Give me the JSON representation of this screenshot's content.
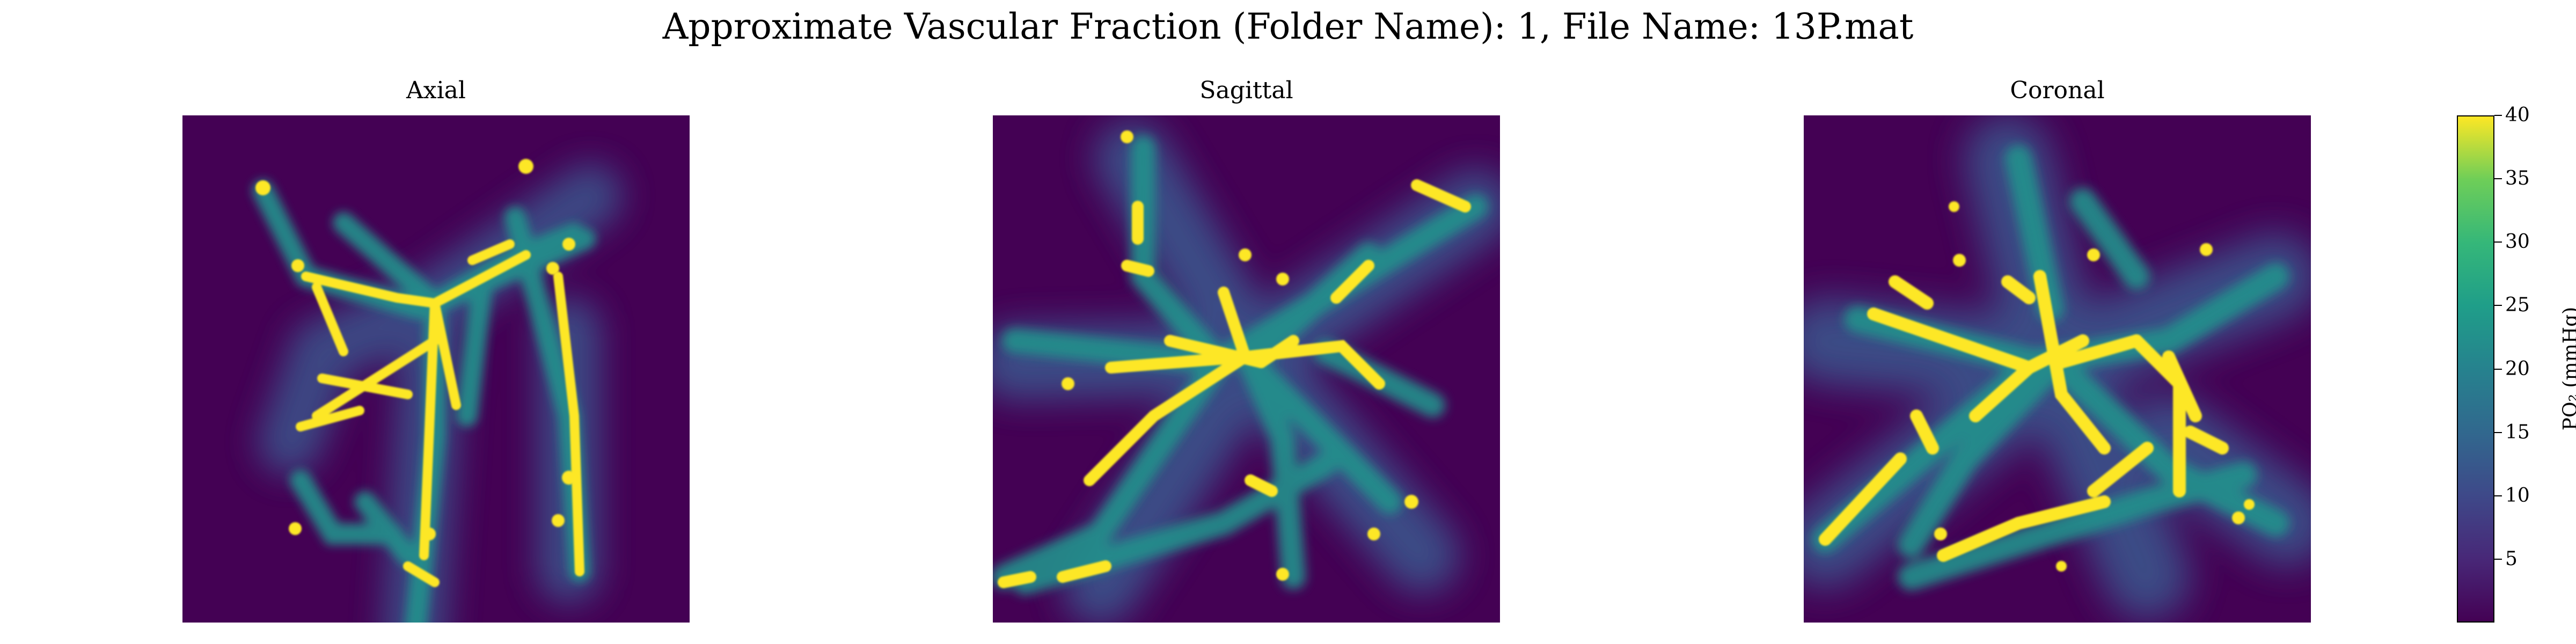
{
  "figure": {
    "title": "Approximate Vascular Fraction (Folder Name): 1, File Name: 13P.mat"
  },
  "chart_data": [
    {
      "type": "heatmap",
      "title": "Axial",
      "description_scale": "viridis",
      "xlabel": "",
      "ylabel": ""
    },
    {
      "type": "heatmap",
      "title": "Sagittal",
      "description_scale": "viridis",
      "xlabel": "",
      "ylabel": ""
    },
    {
      "type": "heatmap",
      "title": "Coronal",
      "description_scale": "viridis",
      "xlabel": "",
      "ylabel": ""
    }
  ],
  "colorbar": {
    "label": "PO₂ (mmHg)",
    "range": [
      0,
      40
    ],
    "ticks": [
      5,
      10,
      15,
      20,
      25,
      30,
      35,
      40
    ],
    "tick_labels": [
      "5",
      "10",
      "15",
      "20",
      "25",
      "30",
      "35",
      "40"
    ],
    "colormap": "viridis",
    "colors": {
      "low": "#440154",
      "mid_low": "#3b528b",
      "mid": "#21918c",
      "mid_high": "#5ec962",
      "high": "#fde725"
    }
  }
}
